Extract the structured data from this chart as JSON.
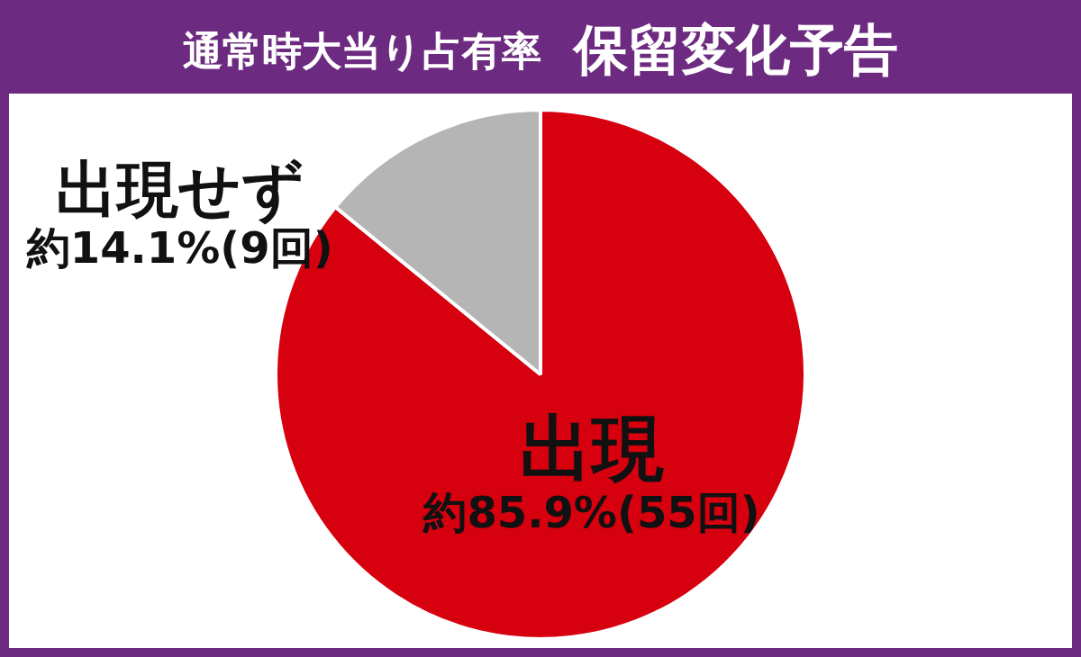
{
  "chart_data": {
    "type": "pie",
    "title": "通常時大当り占有率",
    "subtitle": "保留変化予告",
    "categories": [
      "出現",
      "出現せず"
    ],
    "values": [
      85.9,
      14.1
    ],
    "colors": [
      "#d7000f",
      "#b5b5b5"
    ],
    "value_labels": [
      "約85.9%(55回)",
      "約14.1%(9回)"
    ],
    "legend": false
  }
}
